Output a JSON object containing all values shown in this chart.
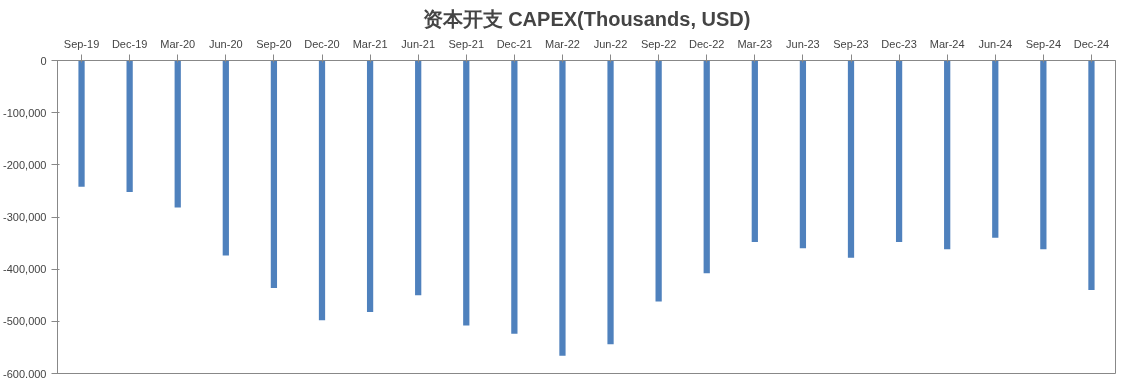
{
  "chart_data": {
    "type": "bar",
    "title": "资本开支 CAPEX(Thousands, USD)",
    "categories": [
      "Sep-19",
      "Dec-19",
      "Mar-20",
      "Jun-20",
      "Sep-20",
      "Dec-20",
      "Mar-21",
      "Jun-21",
      "Sep-21",
      "Dec-21",
      "Mar-22",
      "Jun-22",
      "Sep-22",
      "Dec-22",
      "Mar-23",
      "Jun-23",
      "Sep-23",
      "Dec-23",
      "Mar-24",
      "Jun-24",
      "Sep-24",
      "Dec-24"
    ],
    "values": [
      -242000,
      -252000,
      -282000,
      -374000,
      -436000,
      -498000,
      -482000,
      -450000,
      -508000,
      -524000,
      -566000,
      -544000,
      -462000,
      -408000,
      -348000,
      -360000,
      -378000,
      -348000,
      -362000,
      -340000,
      -362000,
      -440000
    ],
    "color": "#4f81bd",
    "ylim": [
      -600000,
      0
    ],
    "yticks": [
      {
        "value": -600000,
        "label": "-600,000"
      },
      {
        "value": -500000,
        "label": "-500,000"
      },
      {
        "value": -400000,
        "label": "-400,000"
      },
      {
        "value": -300000,
        "label": "-300,000"
      },
      {
        "value": -200000,
        "label": "-200,000"
      },
      {
        "value": -100000,
        "label": "-100,000"
      },
      {
        "value": 0,
        "label": "0"
      }
    ],
    "grid": false
  }
}
